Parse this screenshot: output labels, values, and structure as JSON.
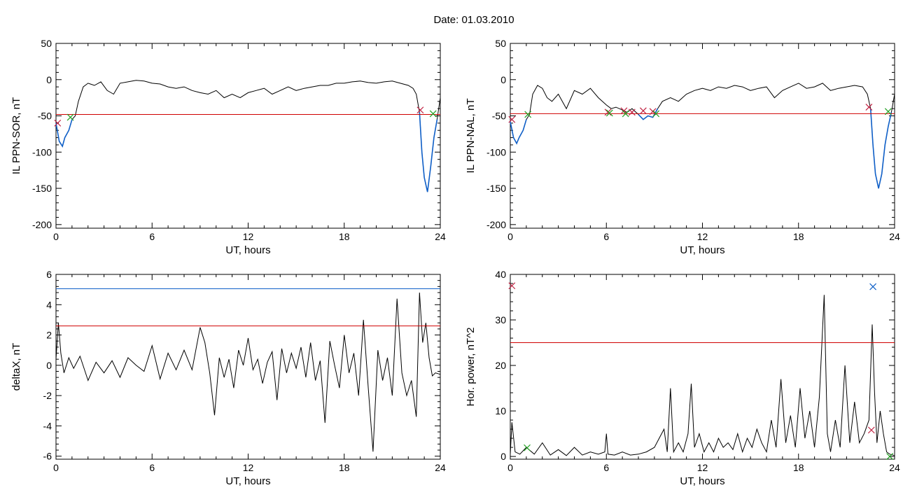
{
  "page": {
    "title": "Date:  01.03.2010"
  },
  "colors": {
    "trace": "#000000",
    "threshold": "#d00000",
    "blue": "#1060c8",
    "green": "#20a020",
    "red_marker": "#c02040"
  },
  "chart_data": [
    {
      "id": "panel-il-ppn-sor",
      "type": "line",
      "xlabel": "UT, hours",
      "ylabel": "IL PPN-SOR, nT",
      "xlim": [
        0,
        24
      ],
      "ylim": [
        -205,
        50
      ],
      "xticks": [
        0,
        6,
        12,
        18,
        24
      ],
      "yticks": [
        50,
        0,
        -50,
        -100,
        -150,
        -200
      ],
      "threshold": -48,
      "series": [
        {
          "role": "main",
          "color": "#000000",
          "x": [
            0,
            0.2,
            0.4,
            0.55,
            0.8,
            1.0,
            1.2,
            1.4,
            1.7,
            2.0,
            2.4,
            2.8,
            3.2,
            3.6,
            4.0,
            4.5,
            5.0,
            5.5,
            6.0,
            6.5,
            7.0,
            7.5,
            8.0,
            8.5,
            9.0,
            9.5,
            10.0,
            10.5,
            11.0,
            11.5,
            12.0,
            12.5,
            13.0,
            13.5,
            14.0,
            14.5,
            15.0,
            15.5,
            16.0,
            16.5,
            17.0,
            17.5,
            18.0,
            18.5,
            19.0,
            19.5,
            20.0,
            20.5,
            21.0,
            21.5,
            22.0,
            22.3,
            22.5,
            22.7,
            22.85,
            23.0,
            23.2,
            23.4,
            23.6,
            23.8,
            24.0
          ],
          "y": [
            -60,
            -85,
            -92,
            -80,
            -70,
            -55,
            -50,
            -30,
            -10,
            -5,
            -8,
            -3,
            -15,
            -20,
            -5,
            -3,
            -1,
            -2,
            -5,
            -6,
            -10,
            -12,
            -10,
            -15,
            -18,
            -20,
            -15,
            -25,
            -20,
            -25,
            -18,
            -15,
            -12,
            -20,
            -15,
            -10,
            -15,
            -12,
            -10,
            -8,
            -8,
            -5,
            -5,
            -3,
            -2,
            -4,
            -5,
            -3,
            -2,
            -5,
            -8,
            -12,
            -20,
            -45,
            -100,
            -135,
            -155,
            -120,
            -80,
            -55,
            -25
          ]
        },
        {
          "role": "below-threshold",
          "color": "#1060c8",
          "x": [
            0,
            0.2,
            0.4,
            0.55,
            0.8,
            1.0
          ],
          "y": [
            -60,
            -85,
            -92,
            -80,
            -70,
            -55
          ]
        },
        {
          "role": "below-threshold",
          "color": "#1060c8",
          "x": [
            22.7,
            22.85,
            23.0,
            23.2,
            23.4,
            23.6,
            23.8
          ],
          "y": [
            -45,
            -100,
            -135,
            -155,
            -120,
            -80,
            -55
          ]
        }
      ],
      "markers": [
        {
          "x": 0.1,
          "y": -60,
          "color": "#c02040"
        },
        {
          "x": 0.9,
          "y": -52,
          "color": "#20a020"
        },
        {
          "x": 22.75,
          "y": -42,
          "color": "#c02040"
        },
        {
          "x": 23.55,
          "y": -47,
          "color": "#20a020"
        }
      ],
      "hlines": []
    },
    {
      "id": "panel-il-ppn-nal",
      "type": "line",
      "xlabel": "UT, hours",
      "ylabel": "IL PPN-NAL, nT",
      "xlim": [
        0,
        24
      ],
      "ylim": [
        -205,
        50
      ],
      "xticks": [
        0,
        6,
        12,
        18,
        24
      ],
      "yticks": [
        50,
        0,
        -50,
        -100,
        -150,
        -200
      ],
      "threshold": -47,
      "series": [
        {
          "role": "main",
          "color": "#000000",
          "x": [
            0,
            0.2,
            0.4,
            0.55,
            0.8,
            1.0,
            1.2,
            1.4,
            1.7,
            2.0,
            2.3,
            2.6,
            3.0,
            3.5,
            4.0,
            4.5,
            5.0,
            5.5,
            6.0,
            6.3,
            6.6,
            7.0,
            7.3,
            7.6,
            8.0,
            8.3,
            8.6,
            8.9,
            9.2,
            9.5,
            10.0,
            10.5,
            11.0,
            11.5,
            12.0,
            12.5,
            13.0,
            13.5,
            14.0,
            14.5,
            15.0,
            15.5,
            16.0,
            16.5,
            17.0,
            17.5,
            18.0,
            18.5,
            19.0,
            19.5,
            20.0,
            20.5,
            21.0,
            21.5,
            22.0,
            22.3,
            22.5,
            22.65,
            22.8,
            23.0,
            23.2,
            23.4,
            23.6,
            23.8,
            24.0
          ],
          "y": [
            -58,
            -80,
            -88,
            -80,
            -70,
            -55,
            -48,
            -20,
            -8,
            -12,
            -25,
            -30,
            -20,
            -40,
            -15,
            -20,
            -12,
            -25,
            -35,
            -40,
            -38,
            -42,
            -45,
            -40,
            -48,
            -55,
            -50,
            -52,
            -40,
            -30,
            -25,
            -30,
            -20,
            -15,
            -12,
            -15,
            -10,
            -12,
            -8,
            -10,
            -15,
            -12,
            -10,
            -25,
            -15,
            -10,
            -5,
            -12,
            -10,
            -5,
            -15,
            -12,
            -10,
            -8,
            -10,
            -20,
            -40,
            -90,
            -130,
            -150,
            -130,
            -90,
            -65,
            -45,
            -20
          ]
        },
        {
          "role": "below-threshold",
          "color": "#1060c8",
          "x": [
            0,
            0.2,
            0.4,
            0.55,
            0.8,
            1.0
          ],
          "y": [
            -58,
            -80,
            -88,
            -80,
            -70,
            -55
          ]
        },
        {
          "role": "below-threshold",
          "color": "#1060c8",
          "x": [
            8.0,
            8.3,
            8.6,
            8.9,
            9.2
          ],
          "y": [
            -48,
            -55,
            -50,
            -52,
            -40
          ]
        },
        {
          "role": "below-threshold",
          "color": "#1060c8",
          "x": [
            22.5,
            22.65,
            22.8,
            23.0,
            23.2,
            23.4,
            23.6,
            23.8
          ],
          "y": [
            -40,
            -90,
            -130,
            -150,
            -130,
            -90,
            -65,
            -45
          ]
        }
      ],
      "markers": [
        {
          "x": 0.1,
          "y": -55,
          "color": "#c02040"
        },
        {
          "x": 1.1,
          "y": -48,
          "color": "#20a020"
        },
        {
          "x": 6.1,
          "y": -45,
          "color": "#c02040"
        },
        {
          "x": 6.2,
          "y": -46,
          "color": "#20a020"
        },
        {
          "x": 7.1,
          "y": -43,
          "color": "#c02040"
        },
        {
          "x": 7.2,
          "y": -47,
          "color": "#20a020"
        },
        {
          "x": 7.6,
          "y": -45,
          "color": "#c02040"
        },
        {
          "x": 8.3,
          "y": -43,
          "color": "#c02040"
        },
        {
          "x": 8.9,
          "y": -44,
          "color": "#c02040"
        },
        {
          "x": 9.1,
          "y": -47,
          "color": "#20a020"
        },
        {
          "x": 22.4,
          "y": -38,
          "color": "#c02040"
        },
        {
          "x": 23.6,
          "y": -44,
          "color": "#20a020"
        }
      ],
      "hlines": []
    },
    {
      "id": "panel-deltax",
      "type": "line",
      "xlabel": "UT, hours",
      "ylabel": "deltaX, nT",
      "xlim": [
        0,
        24
      ],
      "ylim": [
        -6.2,
        6
      ],
      "xticks": [
        0,
        6,
        12,
        18,
        24
      ],
      "yticks": [
        6,
        4,
        2,
        0,
        -2,
        -4,
        -6
      ],
      "threshold": 2.6,
      "hlines": [
        {
          "y": 5.05,
          "color": "#1060c8"
        }
      ],
      "series": [
        {
          "role": "main",
          "color": "#000000",
          "x": [
            0,
            0.15,
            0.3,
            0.5,
            0.8,
            1.1,
            1.5,
            2.0,
            2.5,
            3.0,
            3.5,
            4.0,
            4.5,
            5.0,
            5.5,
            6.0,
            6.5,
            7.0,
            7.5,
            8.0,
            8.5,
            9.0,
            9.3,
            9.6,
            9.9,
            10.2,
            10.5,
            10.8,
            11.1,
            11.4,
            11.7,
            12.0,
            12.3,
            12.6,
            12.9,
            13.2,
            13.5,
            13.8,
            14.1,
            14.4,
            14.7,
            15.0,
            15.3,
            15.6,
            15.9,
            16.2,
            16.5,
            16.8,
            17.1,
            17.4,
            17.7,
            18.0,
            18.3,
            18.6,
            18.9,
            19.2,
            19.5,
            19.8,
            20.1,
            20.4,
            20.7,
            21.0,
            21.3,
            21.6,
            21.9,
            22.2,
            22.5,
            22.7,
            22.9,
            23.1,
            23.3,
            23.5,
            23.7,
            24.0
          ],
          "y": [
            0.4,
            2.8,
            0.8,
            -0.5,
            0.5,
            -0.2,
            0.6,
            -1.0,
            0.2,
            -0.5,
            0.3,
            -0.8,
            0.5,
            0.0,
            -0.4,
            1.3,
            -0.9,
            0.8,
            -0.3,
            1.0,
            -0.3,
            2.5,
            1.5,
            -0.5,
            -3.3,
            0.5,
            -0.8,
            0.4,
            -1.5,
            1.0,
            0.0,
            1.8,
            -0.3,
            0.4,
            -1.2,
            0.2,
            0.9,
            -2.3,
            1.1,
            -0.5,
            0.8,
            -0.2,
            1.2,
            -0.8,
            1.5,
            -1.0,
            0.3,
            -3.8,
            1.6,
            0.0,
            -1.5,
            2.0,
            -0.5,
            0.8,
            -2.0,
            3.0,
            -1.5,
            -5.7,
            1.0,
            -1.0,
            0.5,
            -2.0,
            4.4,
            -0.5,
            -2.0,
            -1.0,
            -3.4,
            4.8,
            1.5,
            2.8,
            0.5,
            -0.7,
            -0.5,
            -0.6
          ]
        }
      ],
      "markers": []
    },
    {
      "id": "panel-hor-power",
      "type": "line",
      "xlabel": "UT, hours",
      "ylabel": "Hor. power, nT^2",
      "xlim": [
        0,
        24
      ],
      "ylim": [
        -0.6,
        40
      ],
      "xticks": [
        0,
        6,
        12,
        18,
        24
      ],
      "yticks": [
        40,
        30,
        20,
        10,
        0
      ],
      "threshold": 25,
      "hlines": [],
      "series": [
        {
          "role": "main",
          "color": "#000000",
          "x": [
            0,
            0.1,
            0.3,
            0.6,
            1.0,
            1.5,
            2.0,
            2.5,
            3.0,
            3.5,
            4.0,
            4.5,
            5.0,
            5.5,
            5.9,
            6.0,
            6.1,
            6.5,
            7.0,
            7.5,
            8.0,
            8.5,
            9.0,
            9.3,
            9.6,
            9.8,
            10.0,
            10.2,
            10.5,
            10.8,
            11.1,
            11.3,
            11.5,
            11.8,
            12.1,
            12.4,
            12.7,
            13.0,
            13.3,
            13.6,
            13.9,
            14.2,
            14.5,
            14.8,
            15.1,
            15.4,
            15.7,
            16.0,
            16.3,
            16.6,
            16.9,
            17.2,
            17.5,
            17.8,
            18.1,
            18.4,
            18.7,
            19.0,
            19.3,
            19.6,
            19.8,
            20.0,
            20.3,
            20.6,
            20.9,
            21.2,
            21.5,
            21.8,
            22.1,
            22.4,
            22.6,
            22.75,
            22.9,
            23.1,
            23.3,
            23.5,
            23.7,
            24.0
          ],
          "y": [
            0.5,
            7.5,
            1.0,
            0.5,
            2.0,
            0.5,
            3.0,
            0.3,
            1.5,
            0.2,
            2.0,
            0.3,
            1.0,
            0.5,
            1.0,
            5.0,
            0.5,
            0.3,
            1.0,
            0.3,
            0.5,
            1.0,
            2.0,
            4.0,
            6.0,
            1.0,
            15.0,
            1.0,
            3.0,
            1.0,
            5.0,
            16.0,
            2.0,
            5.0,
            1.0,
            3.0,
            1.0,
            4.0,
            2.0,
            3.0,
            1.5,
            5.0,
            1.0,
            4.0,
            2.0,
            6.0,
            3.0,
            1.0,
            8.0,
            2.0,
            17.0,
            3.0,
            9.0,
            2.0,
            15.0,
            4.0,
            10.0,
            2.0,
            13.0,
            35.5,
            5.0,
            1.0,
            8.0,
            2.0,
            20.0,
            3.0,
            12.0,
            3.0,
            5.0,
            8.0,
            29.0,
            14.0,
            3.0,
            10.0,
            5.0,
            1.0,
            0.5,
            0.2
          ]
        }
      ],
      "markers": [
        {
          "x": 0.1,
          "y": 37.5,
          "color": "#c02040"
        },
        {
          "x": 1.05,
          "y": 1.9,
          "color": "#20a020"
        },
        {
          "x": 22.55,
          "y": 5.8,
          "color": "#c02040"
        },
        {
          "x": 22.65,
          "y": 37.3,
          "color": "#1060c8"
        },
        {
          "x": 23.7,
          "y": 0.0,
          "color": "#20a020"
        }
      ]
    }
  ]
}
